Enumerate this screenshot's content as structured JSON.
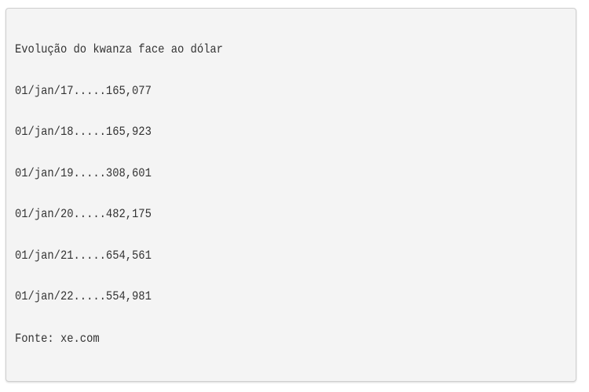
{
  "title": "Evolução do kwanza face ao dólar",
  "rates": [
    "01/jan/17.....165,077",
    "01/jan/18.....165,923",
    "01/jan/19.....308,601",
    "01/jan/20.....482,175",
    "01/jan/21.....654,561",
    "01/jan/22.....554,981"
  ],
  "source": "Fonte: xe.com"
}
